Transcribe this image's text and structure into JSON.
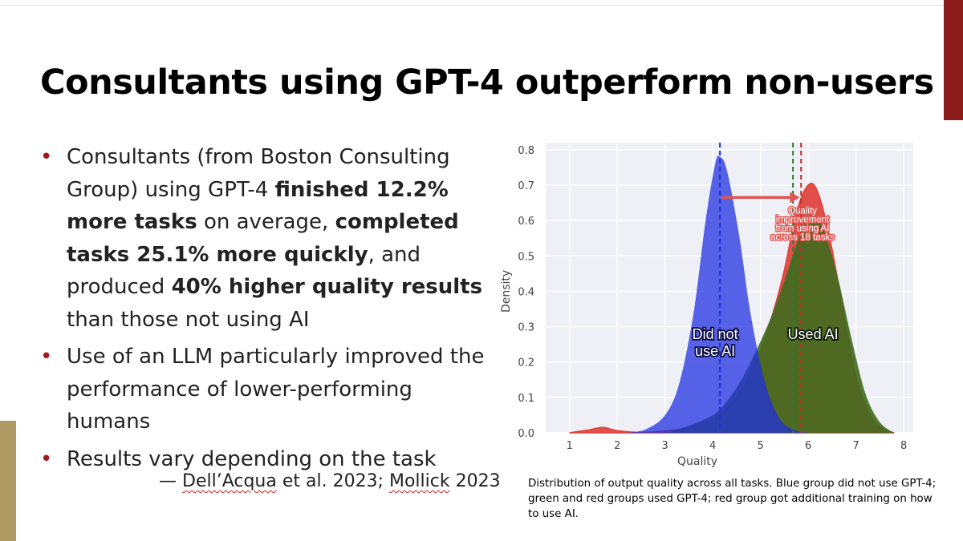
{
  "slide": {
    "title": "Consultants using GPT-4 outperform non-users",
    "bullets": [
      {
        "segments": [
          {
            "text": "Consultants (from Boston Consulting Group) using GPT-4 ",
            "bold": false
          },
          {
            "text": "finished 12.2% more tasks",
            "bold": true
          },
          {
            "text": " on average, ",
            "bold": false
          },
          {
            "text": "completed tasks 25.1% more quickly",
            "bold": true
          },
          {
            "text": ", and produced ",
            "bold": false
          },
          {
            "text": "40% higher quality results",
            "bold": true
          },
          {
            "text": " than those not using AI",
            "bold": false
          }
        ]
      },
      {
        "segments": [
          {
            "text": "Use of an LLM particularly improved the performance of lower-performing humans",
            "bold": false
          }
        ]
      },
      {
        "segments": [
          {
            "text": "Results vary depending on the task",
            "bold": false
          }
        ]
      }
    ],
    "citation": {
      "prefix": "— ",
      "author1": "Dell’Acqua",
      "middle": " et al. 2023; ",
      "author2": "Mollick",
      "suffix": " 2023"
    },
    "caption": "Distribution of output quality across all tasks. Blue group did not use GPT-4; green and red groups used GPT-4; red group got additional training on how to use AI."
  },
  "colors": {
    "accent_bullet": "#a01c1c",
    "right_bar": "#8b1a1a",
    "left_bar": "#b09a63",
    "blue": "#1f2fe0",
    "red": "#e0443f",
    "green": "#3f6b1e",
    "plot_bg": "#eef0f5",
    "arrow": "#e05552"
  },
  "chart_data": {
    "type": "area",
    "xlabel": "Quality",
    "ylabel": "Density",
    "xlim": [
      0.5,
      8.2
    ],
    "ylim": [
      0,
      0.82
    ],
    "x_ticks": [
      1,
      2,
      3,
      4,
      5,
      6,
      7,
      8
    ],
    "y_ticks": [
      0.0,
      0.1,
      0.2,
      0.3,
      0.4,
      0.5,
      0.6,
      0.7,
      0.8
    ],
    "grid": true,
    "series": [
      {
        "key": "red",
        "color": "#e0443f",
        "x": [
          1.0,
          1.4,
          1.7,
          2.0,
          2.5,
          3.0,
          3.5,
          4.0,
          4.3,
          4.6,
          4.9,
          5.2,
          5.5,
          5.75,
          6.0,
          6.2,
          6.45,
          6.7,
          7.0,
          7.3,
          7.6,
          7.8
        ],
        "y": [
          0.0,
          0.008,
          0.015,
          0.006,
          0.001,
          0.005,
          0.015,
          0.04,
          0.07,
          0.12,
          0.2,
          0.31,
          0.46,
          0.62,
          0.7,
          0.68,
          0.55,
          0.37,
          0.16,
          0.05,
          0.008,
          0.0
        ]
      },
      {
        "key": "green",
        "color": "#3f6b1e",
        "x": [
          3.0,
          3.5,
          4.0,
          4.3,
          4.6,
          4.9,
          5.2,
          5.5,
          5.8,
          6.05,
          6.3,
          6.6,
          6.9,
          7.2,
          7.5,
          7.8
        ],
        "y": [
          0.0,
          0.02,
          0.05,
          0.09,
          0.15,
          0.23,
          0.32,
          0.43,
          0.55,
          0.615,
          0.58,
          0.45,
          0.27,
          0.11,
          0.03,
          0.0
        ]
      },
      {
        "key": "blue",
        "color": "#1f2fe0",
        "x": [
          2.2,
          2.6,
          3.0,
          3.3,
          3.6,
          3.85,
          4.05,
          4.15,
          4.3,
          4.55,
          4.8,
          5.1,
          5.4,
          5.7,
          6.0
        ],
        "y": [
          0.0,
          0.01,
          0.05,
          0.14,
          0.34,
          0.6,
          0.76,
          0.78,
          0.74,
          0.56,
          0.33,
          0.14,
          0.04,
          0.008,
          0.0
        ]
      }
    ],
    "mean_lines": [
      {
        "key": "blue",
        "x": 4.15,
        "color": "#1f2fe0"
      },
      {
        "key": "green",
        "x": 5.68,
        "color": "#2e7d32"
      },
      {
        "key": "red",
        "x": 5.85,
        "color": "#c62828"
      }
    ],
    "annotations": {
      "arrow": {
        "x_from": 4.18,
        "x_to": 5.82,
        "y": 0.665
      },
      "quality_label": {
        "lines": [
          "Quality",
          "improvement",
          "from using AI",
          "across 18 tasks"
        ],
        "x": 5.88,
        "y_top": 0.62
      },
      "did_not_label": {
        "lines": [
          "Did not",
          "use AI"
        ],
        "x": 4.05,
        "y_top": 0.265
      },
      "used_label": {
        "lines": [
          "Used AI"
        ],
        "x": 6.1,
        "y_top": 0.265
      }
    }
  }
}
